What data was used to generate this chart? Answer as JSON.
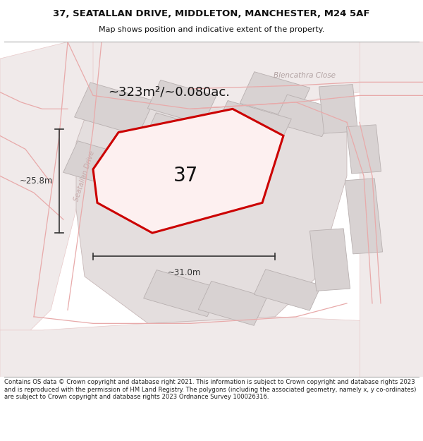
{
  "title_line1": "37, SEATALLAN DRIVE, MIDDLETON, MANCHESTER, M24 5AF",
  "title_line2": "Map shows position and indicative extent of the property.",
  "footer_text": "Contains OS data © Crown copyright and database right 2021. This information is subject to Crown copyright and database rights 2023 and is reproduced with the permission of HM Land Registry. The polygons (including the associated geometry, namely x, y co-ordinates) are subject to Crown copyright and database rights 2023 Ordnance Survey 100026316.",
  "area_label": "~323m²/~0.080ac.",
  "number_label": "37",
  "width_label": "~31.0m",
  "height_label": "~25.8m",
  "street_label": "Seatallan Drive",
  "road_label": "Blencathra Close",
  "bg_color": "#ffffff",
  "map_bg": "#f8f4f4",
  "highlight_color": "#cc0000",
  "dim_color": "#333333",
  "text_color": "#111111",
  "road_text_color": "#aaaaaa",
  "building_gray": "#d8d2d2",
  "road_line_color": "#e8b8b8",
  "block_fill": "#e4dede"
}
